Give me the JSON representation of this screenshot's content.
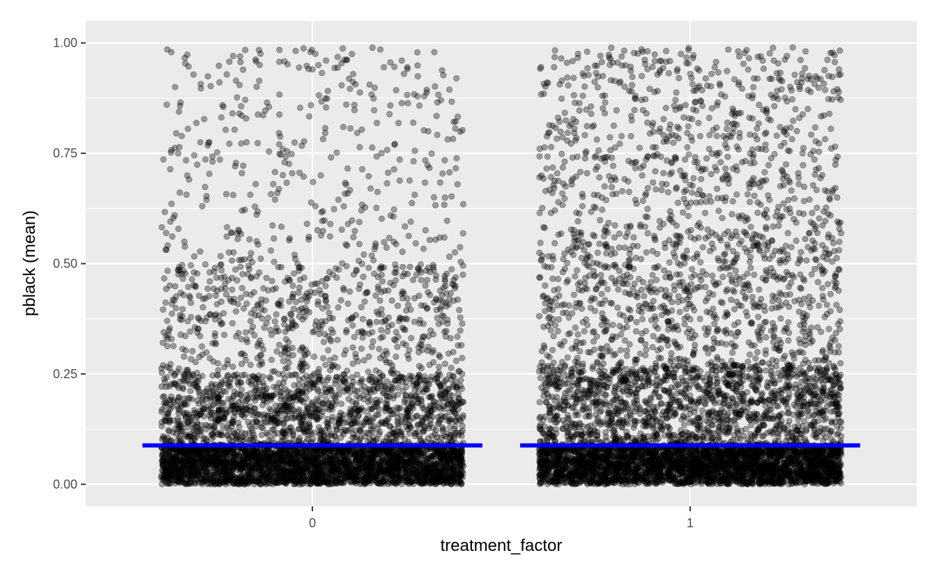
{
  "chart_data": {
    "type": "scatter",
    "title": "",
    "xlabel": "treatment_factor",
    "ylabel": "pblack (mean)",
    "categories": [
      "0",
      "1"
    ],
    "ylim": [
      -0.05,
      1.05
    ],
    "yticks": [
      0.0,
      0.25,
      0.5,
      0.75,
      1.0
    ],
    "ytick_labels": [
      "0.00",
      "0.25",
      "0.50",
      "0.75",
      "1.00"
    ],
    "grid": true,
    "jitter_width": 0.4,
    "points_per_group": [
      5200,
      6200
    ],
    "mean_line": {
      "color": "#0000ff",
      "values": [
        0.088,
        0.088
      ]
    },
    "colors": {
      "panel": "#ebebeb",
      "grid_major": "#ffffff",
      "point": "#000000",
      "point_alpha": 0.35
    }
  }
}
